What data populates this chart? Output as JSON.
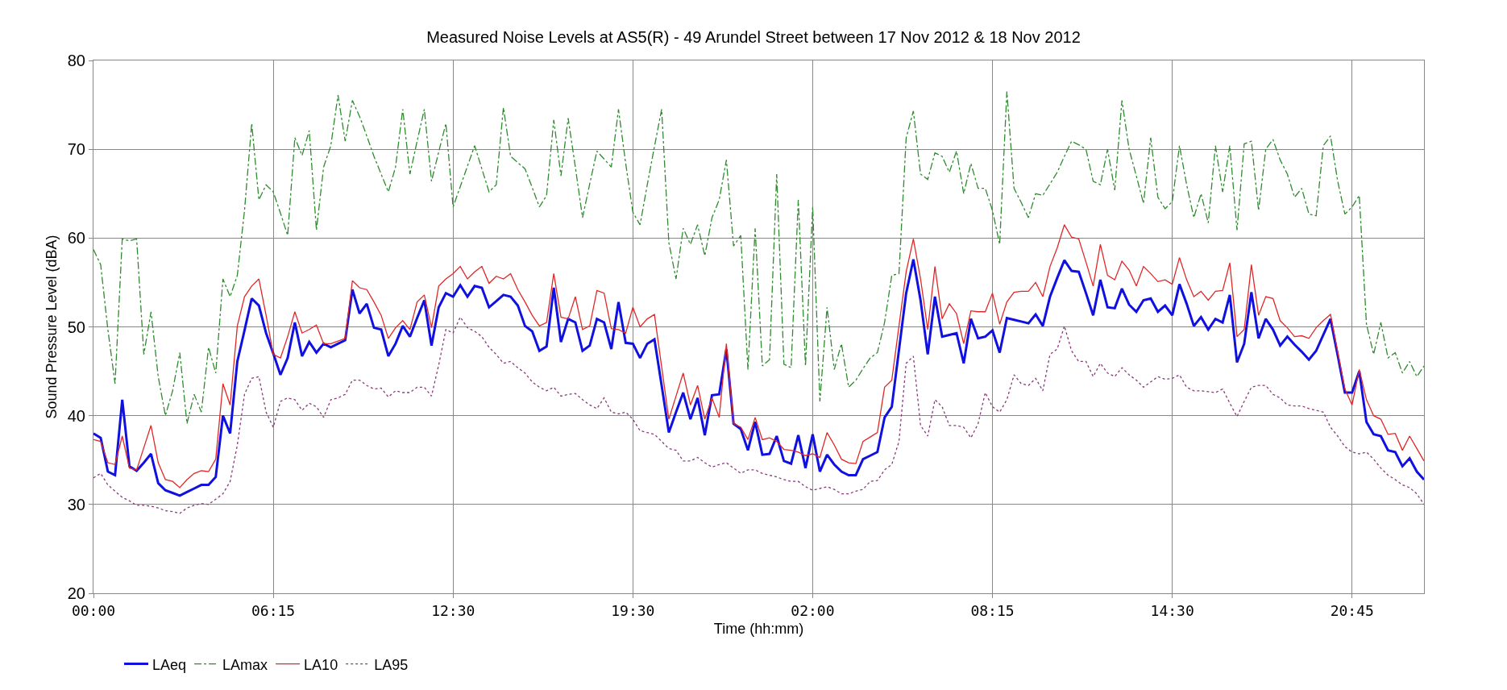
{
  "chart_data": {
    "type": "line",
    "title": "Measured Noise Levels at AS5(R) - 49 Arundel Street between 17 Nov 2012 & 18 Nov 2012",
    "xlabel": "Time (hh:mm)",
    "ylabel": "Sound Pressure Level (dBA)",
    "categories": [
      "00:00",
      null,
      null,
      null,
      null,
      null,
      null,
      null,
      null,
      null,
      null,
      null,
      null,
      null,
      null,
      null,
      null,
      null,
      null,
      null,
      null,
      null,
      null,
      null,
      null,
      "06:15",
      null,
      null,
      null,
      null,
      null,
      null,
      null,
      null,
      null,
      null,
      null,
      null,
      null,
      null,
      null,
      null,
      null,
      null,
      null,
      null,
      null,
      null,
      null,
      null,
      "12:30",
      null,
      null,
      null,
      null,
      null,
      null,
      null,
      null,
      null,
      null,
      null,
      null,
      null,
      null,
      null,
      null,
      null,
      null,
      null,
      null,
      null,
      null,
      null,
      null,
      "19:30",
      null,
      null,
      null,
      null,
      null,
      null,
      null,
      null,
      null,
      null,
      null,
      null,
      null,
      null,
      null,
      null,
      null,
      null,
      null,
      null,
      null,
      null,
      null,
      null,
      "02:00",
      null,
      null,
      null,
      null,
      null,
      null,
      null,
      null,
      null,
      null,
      null,
      null,
      null,
      null,
      null,
      null,
      null,
      null,
      null,
      null,
      null,
      null,
      null,
      null,
      "08:15",
      null,
      null,
      null,
      null,
      null,
      null,
      null,
      null,
      null,
      null,
      null,
      null,
      null,
      null,
      null,
      null,
      null,
      null,
      null,
      null,
      null,
      null,
      null,
      null,
      "14:30",
      null,
      null,
      null,
      null,
      null,
      null,
      null,
      null,
      null,
      null,
      null,
      null,
      null,
      null,
      null,
      null,
      null,
      null,
      null,
      null,
      null,
      null,
      null,
      null,
      "20:45",
      null,
      null,
      null,
      null,
      null,
      null,
      null,
      null,
      null,
      null
    ],
    "ylim": [
      20,
      80
    ],
    "yticks": [
      20,
      30,
      40,
      50,
      60,
      70,
      80
    ],
    "grid": true,
    "legend": "bottom",
    "series": [
      {
        "name": "LAeq",
        "color": "#1010e0",
        "line_style": "solid",
        "values": [
          38.0,
          37.5,
          33.7,
          33.3,
          41.8,
          34.3,
          33.8,
          34.7,
          35.7,
          32.4,
          31.6,
          31.3,
          31.0,
          31.4,
          31.8,
          32.2,
          32.2,
          33.1,
          40.0,
          38.0,
          46.1,
          49.6,
          53.2,
          52.4,
          49.3,
          47.0,
          44.6,
          46.5,
          50.5,
          46.7,
          48.3,
          47.1,
          48.1,
          47.7,
          48.1,
          48.5,
          54.2,
          51.5,
          52.6,
          49.9,
          49.7,
          46.7,
          48.1,
          50.1,
          48.9,
          51.0,
          53.0,
          47.9,
          52.2,
          53.8,
          53.4,
          54.7,
          53.4,
          54.6,
          54.4,
          52.2,
          52.9,
          53.6,
          53.4,
          52.4,
          50.1,
          49.5,
          47.3,
          47.8,
          54.4,
          48.3,
          50.9,
          50.5,
          47.3,
          47.9,
          50.9,
          50.5,
          47.5,
          52.8,
          48.2,
          48.1,
          46.5,
          48.1,
          48.6,
          43.4,
          38.1,
          40.4,
          42.6,
          39.6,
          42.0,
          37.8,
          42.3,
          42.4,
          47.5,
          39.1,
          38.5,
          36.1,
          39.3,
          35.6,
          35.7,
          37.7,
          34.9,
          34.6,
          37.8,
          34.1,
          37.9,
          33.7,
          35.6,
          34.5,
          33.7,
          33.3,
          33.3,
          35.1,
          35.5,
          35.9,
          39.8,
          41.0,
          47.4,
          53.8,
          57.6,
          53.0,
          46.9,
          53.4,
          48.9,
          49.1,
          49.3,
          45.9,
          50.9,
          48.7,
          48.9,
          49.6,
          47.1,
          51.0,
          50.8,
          50.6,
          50.4,
          51.4,
          50.1,
          53.4,
          55.5,
          57.5,
          56.3,
          56.2,
          53.8,
          51.3,
          55.3,
          52.2,
          52.1,
          54.3,
          52.5,
          51.7,
          53.0,
          53.2,
          51.7,
          52.4,
          51.3,
          54.8,
          52.6,
          50.1,
          51.1,
          49.7,
          50.9,
          50.5,
          53.6,
          46.0,
          48.1,
          53.9,
          48.7,
          50.9,
          49.7,
          47.9,
          48.9,
          48.0,
          47.2,
          46.3,
          47.3,
          49.1,
          50.9,
          46.8,
          42.6,
          42.6,
          45.0,
          39.3,
          37.9,
          37.7,
          36.1,
          35.9,
          34.3,
          35.2,
          33.7,
          32.8
        ]
      },
      {
        "name": "LAmax",
        "color": "#2e8b2e",
        "line_style": "dashed",
        "values": [
          58.7,
          57.0,
          49.7,
          43.6,
          59.9,
          59.7,
          59.9,
          46.9,
          51.7,
          44.4,
          40.0,
          42.8,
          47.1,
          39.1,
          42.4,
          40.4,
          47.7,
          44.8,
          55.4,
          53.4,
          55.8,
          63.1,
          72.9,
          64.3,
          66.0,
          65.2,
          62.8,
          60.3,
          71.3,
          69.3,
          72.1,
          60.9,
          68.0,
          70.4,
          76.1,
          70.9,
          75.5,
          73.7,
          71.5,
          69.2,
          67.2,
          65.2,
          68.0,
          74.5,
          67.2,
          70.9,
          74.5,
          66.4,
          69.7,
          72.9,
          63.5,
          65.8,
          68.1,
          70.4,
          67.8,
          65.2,
          66.0,
          74.7,
          69.2,
          68.5,
          67.8,
          65.7,
          63.5,
          64.8,
          73.3,
          67.0,
          73.5,
          68.0,
          62.3,
          66.1,
          69.8,
          68.9,
          68.0,
          74.5,
          68.4,
          62.9,
          61.5,
          66.0,
          70.3,
          74.5,
          59.5,
          55.4,
          61.1,
          59.3,
          61.5,
          58.0,
          62.3,
          64.3,
          68.8,
          59.1,
          60.3,
          45.2,
          61.1,
          45.6,
          46.3,
          67.2,
          45.8,
          45.4,
          64.3,
          45.6,
          63.5,
          41.6,
          52.2,
          45.2,
          48.1,
          43.2,
          44.0,
          45.3,
          46.5,
          47.1,
          50.5,
          55.8,
          56.0,
          71.3,
          74.3,
          67.2,
          66.6,
          69.6,
          69.2,
          67.4,
          69.8,
          65.0,
          68.4,
          65.6,
          65.6,
          63.1,
          59.3,
          76.5,
          65.6,
          64.0,
          62.3,
          65.0,
          64.8,
          66.1,
          67.4,
          69.2,
          70.9,
          70.5,
          70.0,
          66.4,
          66.0,
          70.0,
          65.4,
          75.5,
          70.0,
          67.0,
          63.9,
          71.3,
          64.6,
          63.3,
          64.1,
          70.4,
          66.0,
          62.3,
          65.0,
          61.7,
          70.4,
          65.2,
          70.4,
          60.9,
          70.6,
          70.9,
          63.1,
          70.0,
          71.1,
          68.8,
          67.2,
          64.6,
          65.6,
          62.7,
          62.5,
          70.4,
          71.5,
          66.4,
          62.7,
          63.5,
          64.8,
          50.3,
          46.9,
          50.5,
          46.5,
          47.1,
          44.8,
          46.1,
          44.4,
          45.6
        ]
      },
      {
        "name": "LA10",
        "color": "#e02828",
        "line_style": "solid",
        "values": [
          37.3,
          37.1,
          34.7,
          34.5,
          37.7,
          34.1,
          33.9,
          36.4,
          38.9,
          34.7,
          32.8,
          32.6,
          31.9,
          32.8,
          33.5,
          33.8,
          33.7,
          35.1,
          43.6,
          41.2,
          50.1,
          53.4,
          54.6,
          55.4,
          51.3,
          46.9,
          46.5,
          48.9,
          51.7,
          49.3,
          49.7,
          50.2,
          48.1,
          48.1,
          48.4,
          48.7,
          55.2,
          54.4,
          54.2,
          52.8,
          51.3,
          48.7,
          49.9,
          50.7,
          49.7,
          52.8,
          53.6,
          49.9,
          54.6,
          55.4,
          56.0,
          56.8,
          55.4,
          56.2,
          56.8,
          54.9,
          55.7,
          55.4,
          56.0,
          54.2,
          52.8,
          51.3,
          50.1,
          50.5,
          56.0,
          51.1,
          50.9,
          53.4,
          49.7,
          50.1,
          54.1,
          53.8,
          49.8,
          49.7,
          49.3,
          52.2,
          50.0,
          50.9,
          51.4,
          45.5,
          39.6,
          42.2,
          44.8,
          41.2,
          43.4,
          39.6,
          42.0,
          39.8,
          48.1,
          39.1,
          38.7,
          37.3,
          39.8,
          37.3,
          37.5,
          37.1,
          36.2,
          36.1,
          35.9,
          35.5,
          35.7,
          35.3,
          38.1,
          36.7,
          35.1,
          34.7,
          34.6,
          37.1,
          37.6,
          38.1,
          43.2,
          44.0,
          50.1,
          56.2,
          59.9,
          55.4,
          49.7,
          56.8,
          50.9,
          52.6,
          51.5,
          48.1,
          51.8,
          51.7,
          51.7,
          53.8,
          50.3,
          52.8,
          53.9,
          54.0,
          54.0,
          55.0,
          53.4,
          56.8,
          58.9,
          61.5,
          60.1,
          59.9,
          57.3,
          54.6,
          59.3,
          55.8,
          55.3,
          57.4,
          56.4,
          54.6,
          56.8,
          56.0,
          55.1,
          55.3,
          54.8,
          57.8,
          55.3,
          53.4,
          54.0,
          53.0,
          54.0,
          54.1,
          57.2,
          48.9,
          49.7,
          57.0,
          51.3,
          53.4,
          53.2,
          50.7,
          49.9,
          48.9,
          49.0,
          48.7,
          49.9,
          50.7,
          51.4,
          47.2,
          43.0,
          41.2,
          45.2,
          41.8,
          40.0,
          39.6,
          37.9,
          38.0,
          36.1,
          37.7,
          36.3,
          34.9
        ]
      },
      {
        "name": "LA95",
        "color": "#8a3a7a",
        "line_style": "dotted",
        "values": [
          33.0,
          33.5,
          32.2,
          31.5,
          30.8,
          30.4,
          29.9,
          29.9,
          29.8,
          29.6,
          29.3,
          29.2,
          29.0,
          29.6,
          29.9,
          30.1,
          30.0,
          30.6,
          31.2,
          32.6,
          36.7,
          42.4,
          44.2,
          44.4,
          40.4,
          38.7,
          41.6,
          42.0,
          41.8,
          40.6,
          41.4,
          41.0,
          39.8,
          41.8,
          42.0,
          42.4,
          44.0,
          44.0,
          43.4,
          43.0,
          43.1,
          42.1,
          42.8,
          42.6,
          42.6,
          43.2,
          43.2,
          42.2,
          45.7,
          49.7,
          49.3,
          51.1,
          49.9,
          49.5,
          48.9,
          47.7,
          46.9,
          45.9,
          46.1,
          45.4,
          44.8,
          43.8,
          43.2,
          42.8,
          43.2,
          42.2,
          42.4,
          42.5,
          41.8,
          41.2,
          40.8,
          42.0,
          40.4,
          40.2,
          40.4,
          39.6,
          38.3,
          38.1,
          37.9,
          37.1,
          36.3,
          36.1,
          34.9,
          34.9,
          35.3,
          34.7,
          34.2,
          34.5,
          34.7,
          34.1,
          33.5,
          33.9,
          33.9,
          33.5,
          33.3,
          33.1,
          32.8,
          32.6,
          32.6,
          32.0,
          31.6,
          31.8,
          32.0,
          31.7,
          31.2,
          31.2,
          31.5,
          31.7,
          32.6,
          32.7,
          33.9,
          34.5,
          37.1,
          45.9,
          46.7,
          38.9,
          37.7,
          41.8,
          41.0,
          38.9,
          38.9,
          38.7,
          37.5,
          39.1,
          42.6,
          41.0,
          40.4,
          41.8,
          44.6,
          43.6,
          43.4,
          44.2,
          42.8,
          46.9,
          47.5,
          50.1,
          47.3,
          46.1,
          46.1,
          44.4,
          45.9,
          44.8,
          44.4,
          45.4,
          44.6,
          44.0,
          43.2,
          43.8,
          44.4,
          44.1,
          44.2,
          44.6,
          43.2,
          42.8,
          42.8,
          42.7,
          42.6,
          43.0,
          41.4,
          39.9,
          41.6,
          43.2,
          43.4,
          43.4,
          42.4,
          42.0,
          41.2,
          41.1,
          41.1,
          40.8,
          40.6,
          40.4,
          38.7,
          37.7,
          36.5,
          35.9,
          35.7,
          35.9,
          35.1,
          34.1,
          33.3,
          32.8,
          32.2,
          31.9,
          31.2,
          30.0
        ]
      }
    ]
  }
}
